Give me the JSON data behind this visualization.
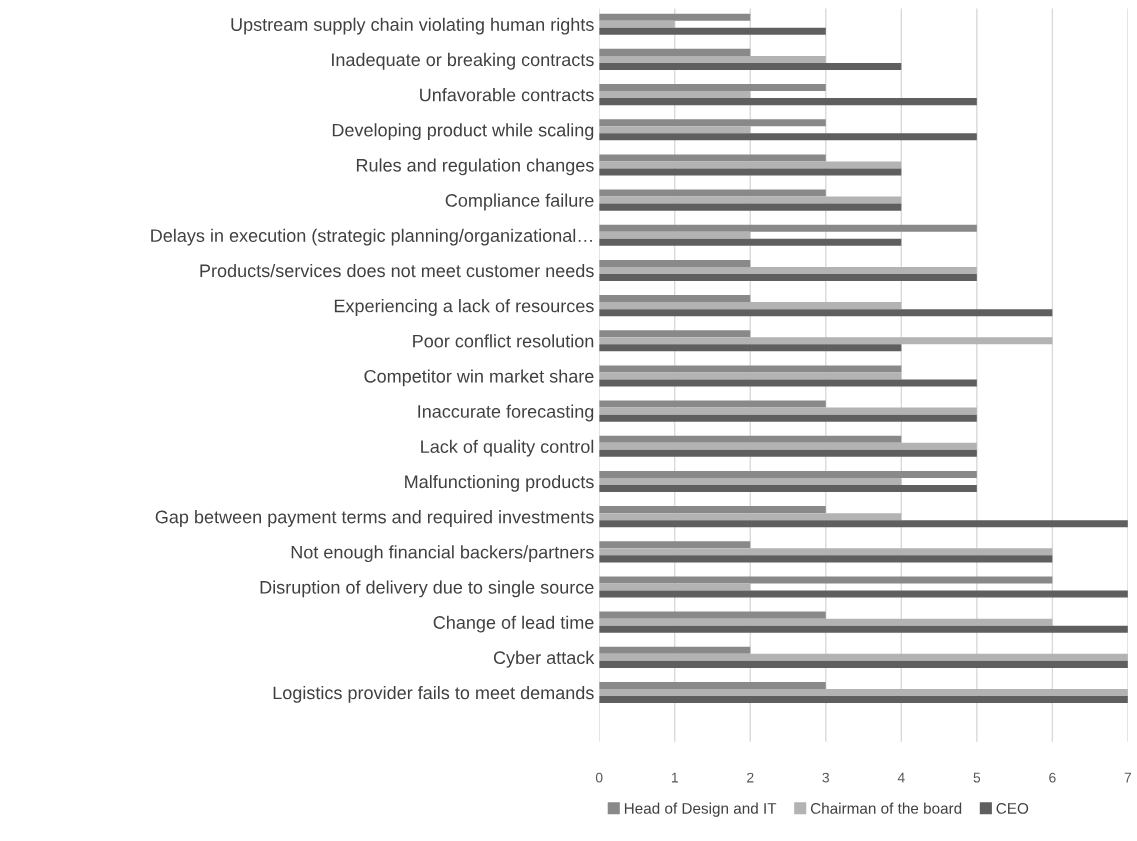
{
  "chart_data": {
    "type": "bar",
    "orientation": "horizontal",
    "categories": [
      "Upstream supply chain violating human rights",
      "Inadequate or breaking contracts",
      "Unfavorable contracts",
      "Developing product while scaling",
      "Rules and regulation changes",
      "Compliance failure",
      "Delays in execution (strategic planning/organizational…",
      "Products/services does not meet customer needs",
      "Experiencing a lack of resources",
      "Poor conflict resolution",
      "Competitor win market share",
      "Inaccurate forecasting",
      "Lack of quality control",
      "Malfunctioning products",
      "Gap between payment terms and required investments",
      "Not enough financial backers/partners",
      "Disruption of delivery due to single source",
      "Change of lead time",
      "Cyber attack",
      "Logistics provider fails to meet demands"
    ],
    "series": [
      {
        "name": "Head of Design and IT",
        "color": "#898989",
        "values": [
          2,
          2,
          3,
          3,
          3,
          3,
          5,
          2,
          2,
          2,
          4,
          3,
          4,
          5,
          3,
          2,
          6,
          3,
          2,
          3
        ]
      },
      {
        "name": "Chairman of the board",
        "color": "#b3b3b3",
        "values": [
          1,
          3,
          2,
          2,
          4,
          4,
          2,
          5,
          4,
          6,
          4,
          5,
          5,
          4,
          4,
          6,
          2,
          6,
          7,
          7
        ]
      },
      {
        "name": "CEO",
        "color": "#5f5f5f",
        "values": [
          3,
          4,
          5,
          5,
          4,
          4,
          4,
          5,
          6,
          4,
          5,
          5,
          5,
          5,
          7,
          6,
          7,
          7,
          7,
          7
        ]
      }
    ],
    "xlim": [
      0,
      7
    ],
    "xticks": [
      0,
      1,
      2,
      3,
      4,
      5,
      6,
      7
    ],
    "grid": "x",
    "legend": "bottom"
  }
}
